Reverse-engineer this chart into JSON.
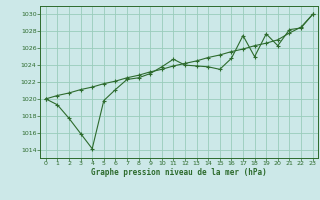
{
  "title": "Graphe pression niveau de la mer (hPa)",
  "background_color": "#cce8e8",
  "grid_color": "#99ccbb",
  "line_color": "#2d6b2d",
  "xlim": [
    -0.5,
    23.5
  ],
  "ylim": [
    1013,
    1031
  ],
  "yticks": [
    1014,
    1016,
    1018,
    1020,
    1022,
    1024,
    1026,
    1028,
    1030
  ],
  "xticks": [
    0,
    1,
    2,
    3,
    4,
    5,
    6,
    7,
    8,
    9,
    10,
    11,
    12,
    13,
    14,
    15,
    16,
    17,
    18,
    19,
    20,
    21,
    22,
    23
  ],
  "series_straight_x": [
    0,
    1,
    2,
    3,
    4,
    5,
    6,
    7,
    8,
    9,
    10,
    11,
    12,
    13,
    14,
    15,
    16,
    17,
    18,
    19,
    20,
    21,
    22,
    23
  ],
  "series_straight_y": [
    1020.0,
    1020.4,
    1020.7,
    1021.1,
    1021.4,
    1021.8,
    1022.1,
    1022.5,
    1022.8,
    1023.2,
    1023.5,
    1023.9,
    1024.2,
    1024.5,
    1024.9,
    1025.2,
    1025.6,
    1025.9,
    1026.3,
    1026.6,
    1027.0,
    1027.8,
    1028.5,
    1030.0
  ],
  "series_jagged_x": [
    0,
    1,
    2,
    3,
    4,
    5,
    6,
    7,
    8,
    9,
    10,
    11,
    12,
    13,
    14,
    15,
    16,
    17,
    18,
    19,
    20,
    21,
    22,
    23
  ],
  "series_jagged_y": [
    1020.0,
    1019.3,
    1017.7,
    1015.9,
    1014.1,
    1019.8,
    1021.1,
    1022.3,
    1022.5,
    1023.0,
    1023.8,
    1024.7,
    1024.0,
    1023.9,
    1023.8,
    1023.5,
    1024.8,
    1027.5,
    1025.0,
    1027.7,
    1026.3,
    1028.2,
    1028.4,
    1030.0
  ]
}
